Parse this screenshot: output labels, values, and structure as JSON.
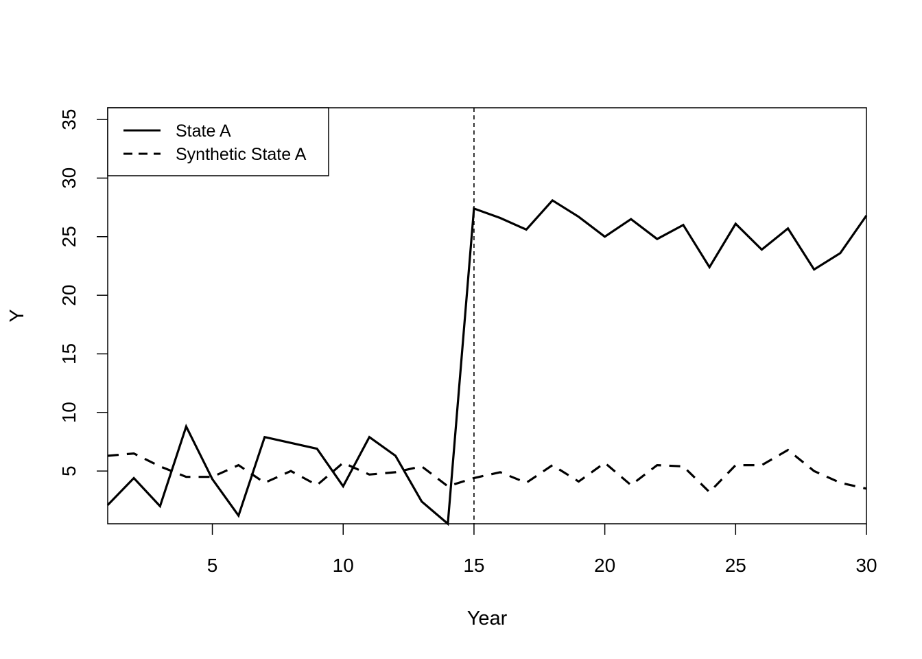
{
  "chart_data": {
    "type": "line",
    "title": "",
    "xlabel": "Year",
    "ylabel": "Y",
    "xlim": [
      1,
      30
    ],
    "ylim": [
      0.5,
      36
    ],
    "xticks": [
      5,
      10,
      15,
      20,
      25,
      30
    ],
    "yticks": [
      5,
      10,
      15,
      20,
      25,
      30,
      35
    ],
    "grid": false,
    "legend_position": "top-left",
    "vline": {
      "x": 15,
      "style": "dashed"
    },
    "x": [
      1,
      2,
      3,
      4,
      5,
      6,
      7,
      8,
      9,
      10,
      11,
      12,
      13,
      14,
      15,
      16,
      17,
      18,
      19,
      20,
      21,
      22,
      23,
      24,
      25,
      26,
      27,
      28,
      29,
      30
    ],
    "series": [
      {
        "name": "State A",
        "style": "solid",
        "color": "#000000",
        "values": [
          2.1,
          4.4,
          2.0,
          8.8,
          4.3,
          1.2,
          7.9,
          7.4,
          6.9,
          3.7,
          7.9,
          6.3,
          2.4,
          0.5,
          27.4,
          26.6,
          25.6,
          28.1,
          26.7,
          25.0,
          26.5,
          24.8,
          26.0,
          22.4,
          26.1,
          23.9,
          25.7,
          22.2,
          23.6,
          26.8
        ]
      },
      {
        "name": "Synthetic State A",
        "style": "dashed",
        "color": "#000000",
        "values": [
          6.3,
          6.5,
          5.4,
          4.5,
          4.5,
          5.5,
          4.0,
          5.0,
          3.8,
          5.7,
          4.7,
          4.9,
          5.4,
          3.7,
          4.4,
          4.9,
          4.0,
          5.5,
          4.1,
          5.7,
          3.8,
          5.5,
          5.4,
          3.2,
          5.5,
          5.5,
          6.8,
          5.0,
          4.0,
          3.5
        ]
      }
    ]
  }
}
